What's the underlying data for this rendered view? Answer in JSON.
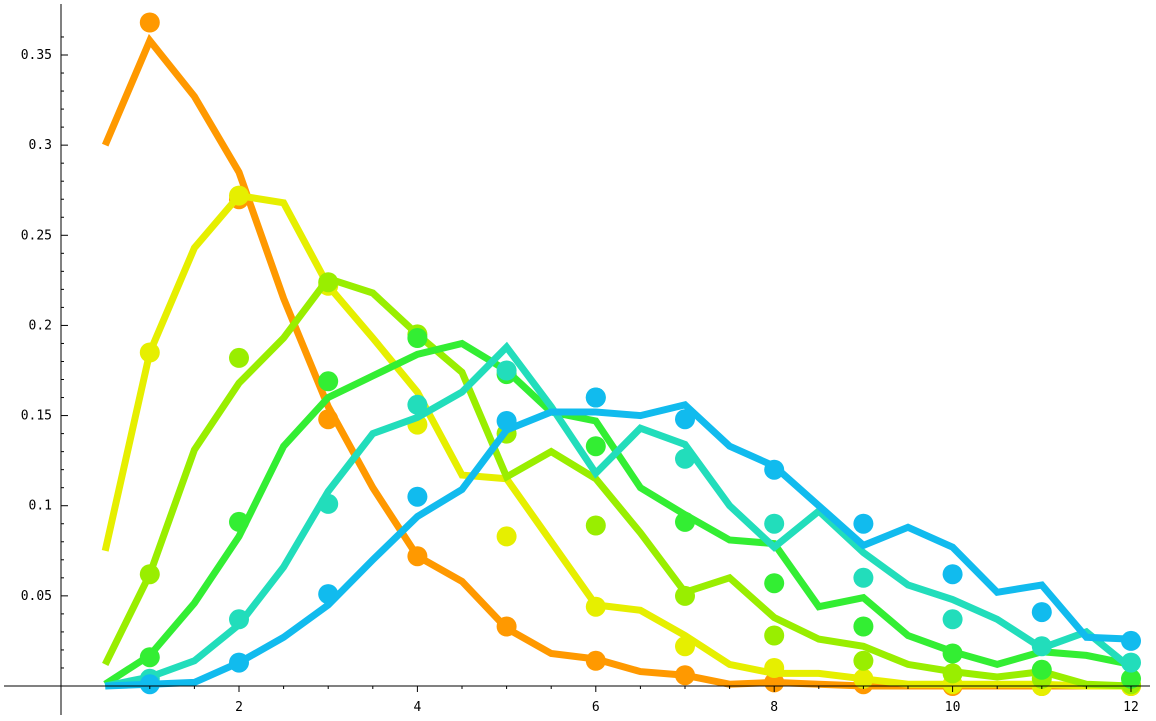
{
  "chart_data": {
    "type": "line",
    "title": "",
    "xlabel": "",
    "ylabel": "",
    "xlim": [
      0.4,
      12.2
    ],
    "ylim": [
      0,
      0.37
    ],
    "x_ticks": [
      2,
      4,
      6,
      8,
      10,
      12
    ],
    "x_tick_labels": [
      "2",
      "4",
      "6",
      "8",
      "10",
      "12"
    ],
    "y_ticks": [
      0.05,
      0.1,
      0.15,
      0.2,
      0.25,
      0.3,
      0.35
    ],
    "y_tick_labels": [
      "0.05",
      "0.1",
      "0.15",
      "0.2",
      "0.25",
      "0.3",
      "0.35"
    ],
    "grid": false,
    "legend": "none",
    "series": [
      {
        "color": "#ff9900",
        "line": {
          "x": [
            0.5,
            1,
            1.5,
            2,
            2.5,
            3,
            3.5,
            4,
            4.5,
            5,
            5.5,
            6,
            6.5,
            7,
            7.5,
            8,
            8.5,
            9,
            9.5,
            10,
            10.5,
            11,
            11.5,
            12
          ],
          "y": [
            0.3,
            0.358,
            0.327,
            0.285,
            0.215,
            0.155,
            0.11,
            0.072,
            0.058,
            0.032,
            0.018,
            0.015,
            0.008,
            0.006,
            0.001,
            0.002,
            0.001,
            0.0,
            0.0,
            0.0,
            0.0,
            0.0,
            0.0,
            0.0
          ]
        },
        "points": {
          "x": [
            1,
            2,
            3,
            4,
            5,
            6,
            7,
            8,
            9,
            10,
            11,
            12
          ],
          "y": [
            0.368,
            0.27,
            0.148,
            0.072,
            0.033,
            0.014,
            0.006,
            0.002,
            0.001,
            0.0,
            0.0,
            0.0
          ]
        }
      },
      {
        "color": "#e6ef00",
        "line": {
          "x": [
            0.5,
            1,
            1.5,
            2,
            2.5,
            3,
            3.5,
            4,
            4.5,
            5,
            5.5,
            6,
            6.5,
            7,
            7.5,
            8,
            8.5,
            9,
            9.5,
            10,
            10.5,
            11,
            11.5,
            12
          ],
          "y": [
            0.075,
            0.185,
            0.243,
            0.272,
            0.268,
            0.222,
            0.193,
            0.163,
            0.117,
            0.115,
            0.08,
            0.045,
            0.042,
            0.028,
            0.012,
            0.007,
            0.007,
            0.004,
            0.001,
            0.001,
            0.001,
            0.001,
            0.0,
            0.0
          ]
        },
        "points": {
          "x": [
            1,
            2,
            3,
            4,
            5,
            6,
            7,
            8,
            9,
            10,
            11,
            12
          ],
          "y": [
            0.185,
            0.272,
            0.222,
            0.145,
            0.083,
            0.044,
            0.022,
            0.01,
            0.004,
            0.001,
            0.0,
            0.0
          ]
        }
      },
      {
        "color": "#99ee00",
        "line": {
          "x": [
            0.5,
            1,
            1.5,
            2,
            2.5,
            3,
            3.5,
            4,
            4.5,
            5,
            5.5,
            6,
            6.5,
            7,
            7.5,
            8,
            8.5,
            9,
            9.5,
            10,
            10.5,
            11,
            11.5,
            12
          ],
          "y": [
            0.012,
            0.062,
            0.131,
            0.168,
            0.193,
            0.226,
            0.218,
            0.195,
            0.174,
            0.116,
            0.13,
            0.115,
            0.085,
            0.052,
            0.06,
            0.038,
            0.026,
            0.022,
            0.012,
            0.008,
            0.005,
            0.008,
            0.001,
            0.0
          ]
        },
        "points": {
          "x": [
            1,
            2,
            3,
            4,
            5,
            6,
            7,
            8,
            9,
            10,
            11,
            12
          ],
          "y": [
            0.062,
            0.182,
            0.224,
            0.195,
            0.14,
            0.089,
            0.05,
            0.028,
            0.014,
            0.007,
            0.004,
            0.001
          ]
        }
      },
      {
        "color": "#33ee33",
        "line": {
          "x": [
            0.5,
            1,
            1.5,
            2,
            2.5,
            3,
            3.5,
            4,
            4.5,
            5,
            5.5,
            6,
            6.5,
            7,
            7.5,
            8,
            8.5,
            9,
            9.5,
            10,
            10.5,
            11,
            11.5,
            12
          ],
          "y": [
            0.001,
            0.017,
            0.046,
            0.083,
            0.133,
            0.16,
            0.172,
            0.184,
            0.19,
            0.175,
            0.152,
            0.147,
            0.11,
            0.095,
            0.081,
            0.079,
            0.044,
            0.049,
            0.028,
            0.019,
            0.012,
            0.019,
            0.017,
            0.012
          ]
        },
        "points": {
          "x": [
            1,
            2,
            3,
            4,
            5,
            6,
            7,
            8,
            9,
            10,
            11,
            12
          ],
          "y": [
            0.016,
            0.091,
            0.169,
            0.193,
            0.173,
            0.133,
            0.091,
            0.057,
            0.033,
            0.018,
            0.009,
            0.004
          ]
        }
      },
      {
        "color": "#22ddbb",
        "line": {
          "x": [
            0.5,
            1,
            1.5,
            2,
            2.5,
            3,
            3.5,
            4,
            4.5,
            5,
            5.5,
            6,
            6.5,
            7,
            7.5,
            8,
            8.5,
            9,
            9.5,
            10,
            10.5,
            11,
            11.5,
            12
          ],
          "y": [
            0.0,
            0.005,
            0.014,
            0.034,
            0.066,
            0.108,
            0.14,
            0.149,
            0.163,
            0.188,
            0.155,
            0.118,
            0.143,
            0.134,
            0.1,
            0.077,
            0.097,
            0.074,
            0.056,
            0.048,
            0.037,
            0.021,
            0.03,
            0.01
          ]
        },
        "points": {
          "x": [
            1,
            2,
            3,
            4,
            5,
            6,
            7,
            8,
            9,
            10,
            11,
            12
          ],
          "y": [
            0.004,
            0.037,
            0.101,
            0.156,
            0.175,
            0.16,
            0.126,
            0.09,
            0.06,
            0.037,
            0.022,
            0.013
          ]
        }
      },
      {
        "color": "#11bbee",
        "line": {
          "x": [
            0.5,
            1,
            1.5,
            2,
            2.5,
            3,
            3.5,
            4,
            4.5,
            5,
            5.5,
            6,
            6.5,
            7,
            7.5,
            8,
            8.5,
            9,
            9.5,
            10,
            10.5,
            11,
            11.5,
            12
          ],
          "y": [
            0.0,
            0.001,
            0.002,
            0.013,
            0.027,
            0.045,
            0.07,
            0.094,
            0.109,
            0.142,
            0.152,
            0.152,
            0.15,
            0.156,
            0.133,
            0.122,
            0.1,
            0.078,
            0.088,
            0.077,
            0.052,
            0.056,
            0.027,
            0.026
          ]
        },
        "points": {
          "x": [
            1,
            2,
            3,
            4,
            5,
            6,
            7,
            8,
            9,
            10,
            11,
            12
          ],
          "y": [
            0.001,
            0.013,
            0.051,
            0.105,
            0.147,
            0.16,
            0.148,
            0.12,
            0.09,
            0.062,
            0.041,
            0.025
          ]
        }
      }
    ]
  }
}
